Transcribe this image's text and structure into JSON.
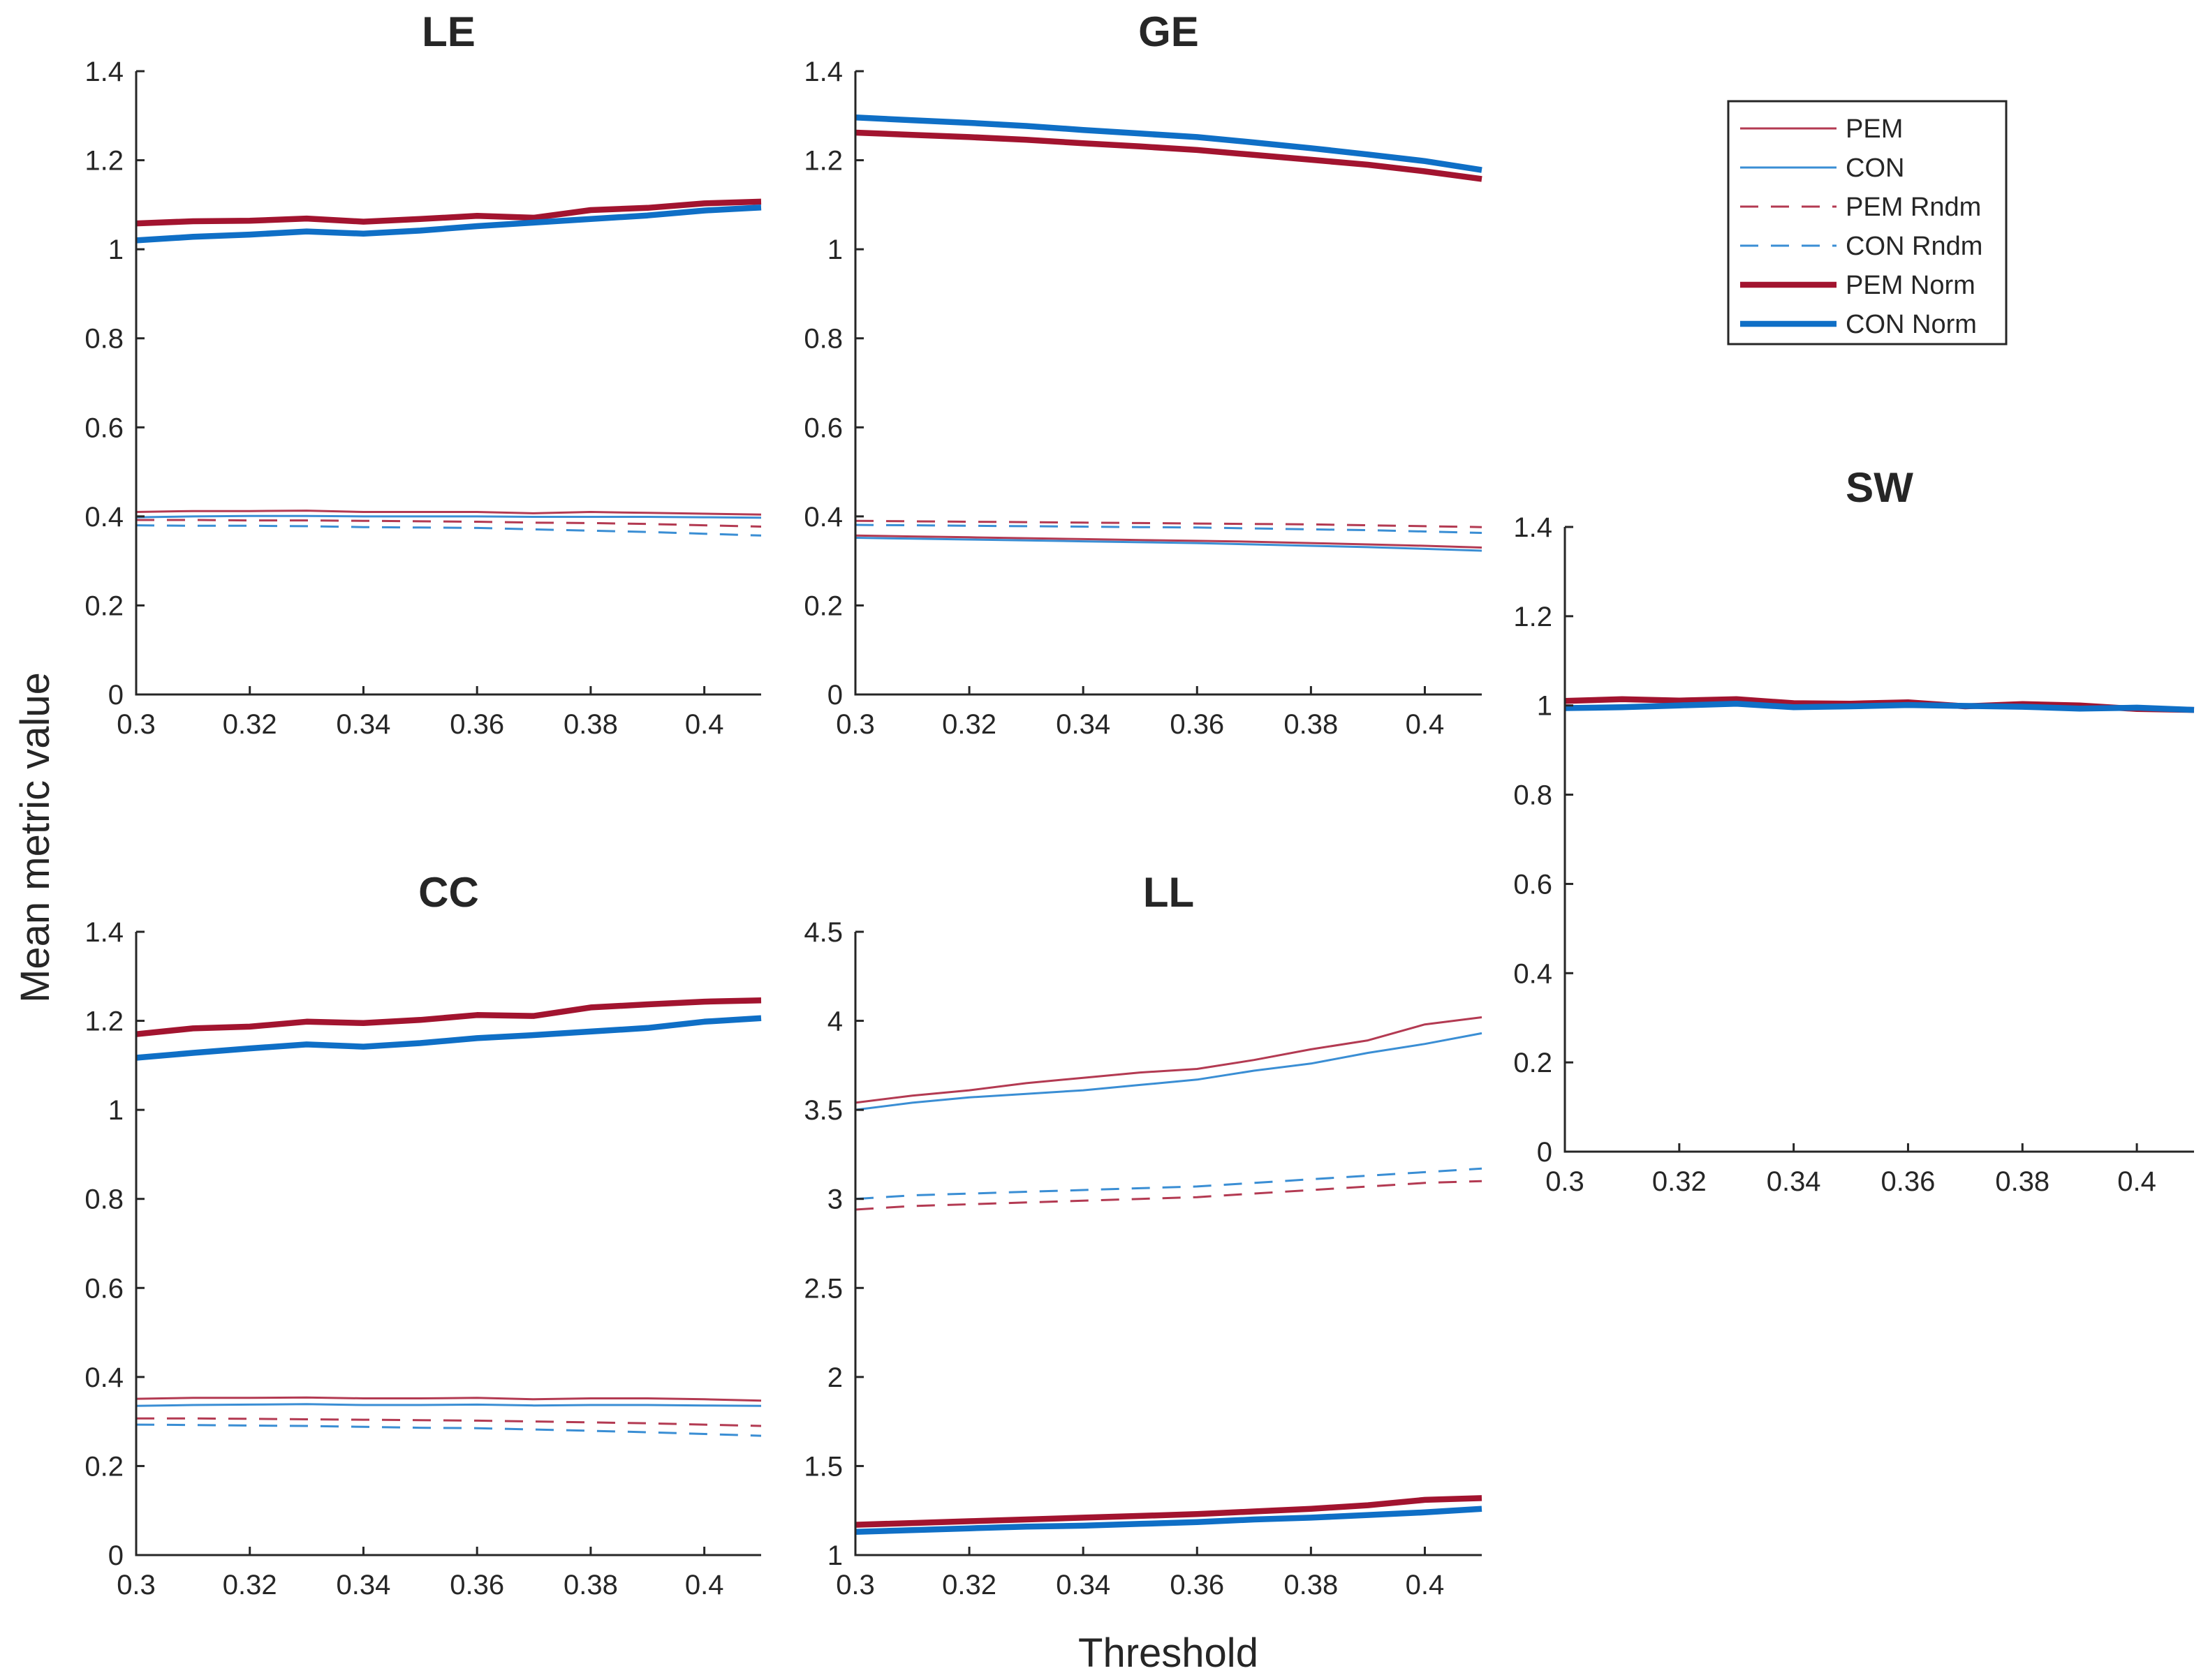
{
  "figure": {
    "ylabel": "Mean metric value",
    "xlabel": "Threshold"
  },
  "legend": {
    "position": "top-right",
    "entries": [
      {
        "key": "pem",
        "label": "PEM",
        "color": "#b33a52",
        "style": "thin-solid"
      },
      {
        "key": "con",
        "label": "CON",
        "color": "#3a8ed4",
        "style": "thin-solid"
      },
      {
        "key": "pem_rndm",
        "label": "PEM Rndm",
        "color": "#b33a52",
        "style": "thin-dashed"
      },
      {
        "key": "con_rndm",
        "label": "CON Rndm",
        "color": "#3a8ed4",
        "style": "thin-dashed"
      },
      {
        "key": "pem_norm",
        "label": "PEM Norm",
        "color": "#a2142f",
        "style": "thick-solid"
      },
      {
        "key": "con_norm",
        "label": "CON Norm",
        "color": "#0f6fc6",
        "style": "thick-solid"
      }
    ]
  },
  "chart_data": [
    {
      "id": "LE",
      "type": "line",
      "title": "LE",
      "x": [
        0.3,
        0.31,
        0.32,
        0.33,
        0.34,
        0.35,
        0.36,
        0.37,
        0.38,
        0.39,
        0.4,
        0.41
      ],
      "xlim": [
        0.3,
        0.41
      ],
      "xticks": [
        0.3,
        0.32,
        0.34,
        0.36,
        0.38,
        0.4
      ],
      "xtick_labels": [
        "0.3",
        "0.32",
        "0.34",
        "0.36",
        "0.38",
        "0.4"
      ],
      "ylim": [
        0,
        1.4
      ],
      "yticks": [
        0,
        0.2,
        0.4,
        0.6,
        0.8,
        1,
        1.2,
        1.4
      ],
      "ytick_labels": [
        "0",
        "0.2",
        "0.4",
        "0.6",
        "0.8",
        "1",
        "1.2",
        "1.4"
      ],
      "series": [
        {
          "key": "pem",
          "name": "PEM",
          "values": [
            0.41,
            0.412,
            0.412,
            0.413,
            0.41,
            0.41,
            0.41,
            0.407,
            0.41,
            0.408,
            0.406,
            0.404
          ]
        },
        {
          "key": "con",
          "name": "CON",
          "values": [
            0.398,
            0.4,
            0.401,
            0.401,
            0.4,
            0.4,
            0.4,
            0.399,
            0.399,
            0.399,
            0.398,
            0.397
          ]
        },
        {
          "key": "pem_rndm",
          "name": "PEM Rndm",
          "values": [
            0.392,
            0.392,
            0.391,
            0.391,
            0.39,
            0.389,
            0.388,
            0.386,
            0.385,
            0.383,
            0.38,
            0.377
          ]
        },
        {
          "key": "con_rndm",
          "name": "CON Rndm",
          "values": [
            0.38,
            0.379,
            0.379,
            0.378,
            0.376,
            0.375,
            0.374,
            0.371,
            0.368,
            0.365,
            0.361,
            0.357
          ]
        },
        {
          "key": "pem_norm",
          "name": "PEM Norm",
          "values": [
            1.058,
            1.063,
            1.064,
            1.069,
            1.062,
            1.068,
            1.075,
            1.071,
            1.088,
            1.093,
            1.103,
            1.107
          ]
        },
        {
          "key": "con_norm",
          "name": "CON Norm",
          "values": [
            1.02,
            1.028,
            1.033,
            1.04,
            1.035,
            1.042,
            1.052,
            1.06,
            1.068,
            1.076,
            1.087,
            1.094
          ]
        }
      ]
    },
    {
      "id": "GE",
      "type": "line",
      "title": "GE",
      "x": [
        0.3,
        0.31,
        0.32,
        0.33,
        0.34,
        0.35,
        0.36,
        0.37,
        0.38,
        0.39,
        0.4,
        0.41
      ],
      "xlim": [
        0.3,
        0.41
      ],
      "xticks": [
        0.3,
        0.32,
        0.34,
        0.36,
        0.38,
        0.4
      ],
      "xtick_labels": [
        "0.3",
        "0.32",
        "0.34",
        "0.36",
        "0.38",
        "0.4"
      ],
      "ylim": [
        0,
        1.4
      ],
      "yticks": [
        0,
        0.2,
        0.4,
        0.6,
        0.8,
        1,
        1.2,
        1.4
      ],
      "ytick_labels": [
        "0",
        "0.2",
        "0.4",
        "0.6",
        "0.8",
        "1",
        "1.2",
        "1.4"
      ],
      "series": [
        {
          "key": "pem",
          "name": "PEM",
          "values": [
            0.357,
            0.355,
            0.353,
            0.351,
            0.349,
            0.347,
            0.345,
            0.343,
            0.34,
            0.337,
            0.334,
            0.33
          ]
        },
        {
          "key": "con",
          "name": "CON",
          "values": [
            0.352,
            0.35,
            0.348,
            0.346,
            0.344,
            0.342,
            0.34,
            0.337,
            0.334,
            0.331,
            0.327,
            0.323
          ]
        },
        {
          "key": "pem_rndm",
          "name": "PEM Rndm",
          "values": [
            0.39,
            0.389,
            0.388,
            0.387,
            0.386,
            0.385,
            0.384,
            0.383,
            0.382,
            0.38,
            0.378,
            0.376
          ]
        },
        {
          "key": "con_rndm",
          "name": "CON Rndm",
          "values": [
            0.381,
            0.38,
            0.379,
            0.378,
            0.377,
            0.376,
            0.375,
            0.373,
            0.371,
            0.369,
            0.366,
            0.363
          ]
        },
        {
          "key": "pem_norm",
          "name": "PEM Norm",
          "values": [
            1.262,
            1.257,
            1.252,
            1.246,
            1.238,
            1.231,
            1.223,
            1.212,
            1.201,
            1.19,
            1.175,
            1.158
          ]
        },
        {
          "key": "con_norm",
          "name": "CON Norm",
          "values": [
            1.296,
            1.29,
            1.284,
            1.277,
            1.268,
            1.26,
            1.252,
            1.24,
            1.227,
            1.213,
            1.198,
            1.178
          ]
        }
      ]
    },
    {
      "id": "SW",
      "type": "line",
      "title": "SW",
      "x": [
        0.3,
        0.31,
        0.32,
        0.33,
        0.34,
        0.35,
        0.36,
        0.37,
        0.38,
        0.39,
        0.4,
        0.41
      ],
      "xlim": [
        0.3,
        0.41
      ],
      "xticks": [
        0.3,
        0.32,
        0.34,
        0.36,
        0.38,
        0.4
      ],
      "xtick_labels": [
        "0.3",
        "0.32",
        "0.34",
        "0.36",
        "0.38",
        "0.4"
      ],
      "ylim": [
        0,
        1.4
      ],
      "yticks": [
        0,
        0.2,
        0.4,
        0.6,
        0.8,
        1,
        1.2,
        1.4
      ],
      "ytick_labels": [
        "0",
        "0.2",
        "0.4",
        "0.6",
        "0.8",
        "1",
        "1.2",
        "1.4"
      ],
      "series": [
        {
          "key": "pem_norm",
          "name": "PEM Norm",
          "values": [
            1.01,
            1.014,
            1.011,
            1.014,
            1.005,
            1.004,
            1.007,
            0.998,
            1.003,
            1.0,
            0.992,
            0.99
          ]
        },
        {
          "key": "con_norm",
          "name": "CON Norm",
          "values": [
            0.994,
            0.996,
            1.0,
            1.004,
            0.996,
            0.998,
            1.001,
            0.999,
            0.997,
            0.993,
            0.995,
            0.99
          ]
        }
      ]
    },
    {
      "id": "CC",
      "type": "line",
      "title": "CC",
      "x": [
        0.3,
        0.31,
        0.32,
        0.33,
        0.34,
        0.35,
        0.36,
        0.37,
        0.38,
        0.39,
        0.4,
        0.41
      ],
      "xlim": [
        0.3,
        0.41
      ],
      "xticks": [
        0.3,
        0.32,
        0.34,
        0.36,
        0.38,
        0.4
      ],
      "xtick_labels": [
        "0.3",
        "0.32",
        "0.34",
        "0.36",
        "0.38",
        "0.4"
      ],
      "ylim": [
        0,
        1.4
      ],
      "yticks": [
        0,
        0.2,
        0.4,
        0.6,
        0.8,
        1,
        1.2,
        1.4
      ],
      "ytick_labels": [
        "0",
        "0.2",
        "0.4",
        "0.6",
        "0.8",
        "1",
        "1.2",
        "1.4"
      ],
      "series": [
        {
          "key": "pem",
          "name": "PEM",
          "values": [
            0.351,
            0.353,
            0.353,
            0.354,
            0.352,
            0.352,
            0.353,
            0.35,
            0.352,
            0.352,
            0.35,
            0.347
          ]
        },
        {
          "key": "con",
          "name": "CON",
          "values": [
            0.335,
            0.337,
            0.338,
            0.339,
            0.337,
            0.337,
            0.338,
            0.336,
            0.337,
            0.337,
            0.336,
            0.335
          ]
        },
        {
          "key": "pem_rndm",
          "name": "PEM Rndm",
          "values": [
            0.307,
            0.307,
            0.306,
            0.305,
            0.304,
            0.303,
            0.302,
            0.3,
            0.298,
            0.296,
            0.293,
            0.29
          ]
        },
        {
          "key": "con_rndm",
          "name": "CON Rndm",
          "values": [
            0.293,
            0.292,
            0.291,
            0.29,
            0.288,
            0.286,
            0.285,
            0.282,
            0.279,
            0.276,
            0.272,
            0.268
          ]
        },
        {
          "key": "pem_norm",
          "name": "PEM Norm",
          "values": [
            1.17,
            1.183,
            1.187,
            1.198,
            1.195,
            1.202,
            1.213,
            1.211,
            1.23,
            1.237,
            1.243,
            1.246
          ]
        },
        {
          "key": "con_norm",
          "name": "CON Norm",
          "values": [
            1.117,
            1.128,
            1.138,
            1.147,
            1.142,
            1.15,
            1.161,
            1.168,
            1.176,
            1.184,
            1.198,
            1.206
          ]
        }
      ]
    },
    {
      "id": "LL",
      "type": "line",
      "title": "LL",
      "x": [
        0.3,
        0.31,
        0.32,
        0.33,
        0.34,
        0.35,
        0.36,
        0.37,
        0.38,
        0.39,
        0.4,
        0.41
      ],
      "xlim": [
        0.3,
        0.41
      ],
      "xticks": [
        0.3,
        0.32,
        0.34,
        0.36,
        0.38,
        0.4
      ],
      "xtick_labels": [
        "0.3",
        "0.32",
        "0.34",
        "0.36",
        "0.38",
        "0.4"
      ],
      "ylim": [
        1,
        4.5
      ],
      "yticks": [
        1,
        1.5,
        2,
        2.5,
        3,
        3.5,
        4,
        4.5
      ],
      "ytick_labels": [
        "1",
        "1.5",
        "2",
        "2.5",
        "3",
        "3.5",
        "4",
        "4.5"
      ],
      "series": [
        {
          "key": "pem",
          "name": "PEM",
          "values": [
            3.54,
            3.58,
            3.61,
            3.65,
            3.68,
            3.71,
            3.73,
            3.78,
            3.84,
            3.89,
            3.98,
            4.02
          ]
        },
        {
          "key": "con",
          "name": "CON",
          "values": [
            3.5,
            3.54,
            3.57,
            3.59,
            3.61,
            3.64,
            3.67,
            3.72,
            3.76,
            3.82,
            3.87,
            3.93
          ]
        },
        {
          "key": "pem_rndm",
          "name": "PEM Rndm",
          "values": [
            2.94,
            2.96,
            2.97,
            2.98,
            2.99,
            3.0,
            3.01,
            3.03,
            3.05,
            3.07,
            3.09,
            3.1
          ]
        },
        {
          "key": "con_rndm",
          "name": "CON Rndm",
          "values": [
            3.0,
            3.02,
            3.03,
            3.04,
            3.05,
            3.06,
            3.07,
            3.09,
            3.11,
            3.13,
            3.15,
            3.17
          ]
        },
        {
          "key": "pem_norm",
          "name": "PEM Norm",
          "values": [
            1.17,
            1.18,
            1.19,
            1.2,
            1.21,
            1.22,
            1.23,
            1.245,
            1.26,
            1.28,
            1.31,
            1.32
          ]
        },
        {
          "key": "con_norm",
          "name": "CON Norm",
          "values": [
            1.13,
            1.14,
            1.15,
            1.16,
            1.165,
            1.175,
            1.185,
            1.2,
            1.21,
            1.225,
            1.24,
            1.26
          ]
        }
      ]
    }
  ]
}
